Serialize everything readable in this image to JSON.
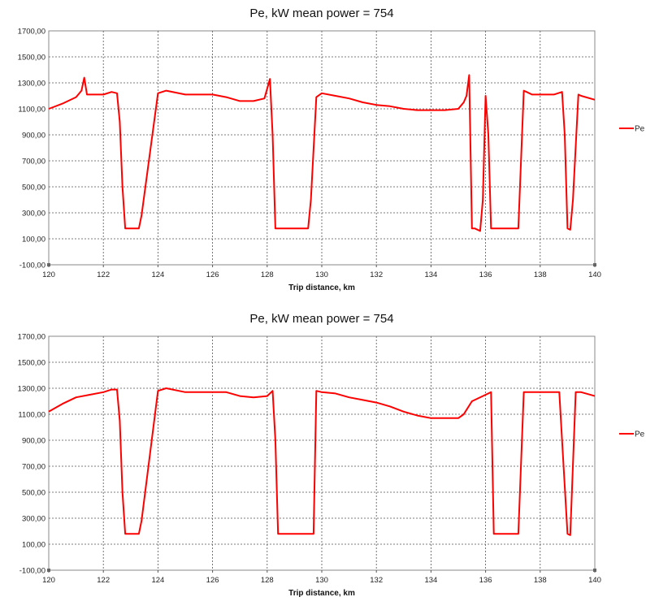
{
  "chart_data": [
    {
      "type": "line",
      "title": "Pe, kW mean power = 754",
      "xlabel": "Trip distance, km",
      "ylabel": "",
      "xlim": [
        120,
        140
      ],
      "ylim": [
        -100,
        1700
      ],
      "x_ticks": [
        "120",
        "122",
        "124",
        "126",
        "128",
        "130",
        "132",
        "134",
        "136",
        "138",
        "140"
      ],
      "y_ticks": [
        "-100,00",
        "100,00",
        "300,00",
        "500,00",
        "700,00",
        "900,00",
        "1100,00",
        "1300,00",
        "1500,00",
        "1700,00"
      ],
      "grid": true,
      "legend": "right",
      "series": [
        {
          "name": "Pe",
          "color": "#ff0000",
          "x": [
            120,
            120.5,
            121,
            121.2,
            121.3,
            121.4,
            122,
            122.3,
            122.5,
            122.6,
            122.7,
            122.8,
            123.3,
            123.4,
            124,
            124.3,
            125,
            126,
            126.5,
            127,
            127.5,
            127.9,
            128.1,
            128.2,
            128.3,
            128.5,
            129.5,
            129.6,
            129.8,
            130,
            130.5,
            131,
            131.5,
            132,
            132.5,
            133,
            133.5,
            134,
            134.5,
            135,
            135.2,
            135.3,
            135.4,
            135.5,
            135.6,
            135.8,
            135.9,
            136,
            136.1,
            136.2,
            136.4,
            136.7,
            137.2,
            137.4,
            137.5,
            137.7,
            138,
            138.5,
            138.8,
            138.9,
            139,
            139.1,
            139.2,
            139.4,
            139.5,
            140
          ],
          "y": [
            1100,
            1140,
            1190,
            1240,
            1340,
            1210,
            1210,
            1230,
            1220,
            1000,
            500,
            180,
            180,
            280,
            1220,
            1240,
            1210,
            1210,
            1190,
            1160,
            1160,
            1180,
            1330,
            900,
            180,
            180,
            180,
            400,
            1190,
            1220,
            1200,
            1180,
            1150,
            1130,
            1120,
            1100,
            1090,
            1090,
            1090,
            1100,
            1150,
            1200,
            1360,
            180,
            180,
            160,
            400,
            1200,
            900,
            180,
            180,
            180,
            180,
            1240,
            1230,
            1210,
            1210,
            1210,
            1230,
            900,
            180,
            170,
            400,
            1210,
            1200,
            1170
          ]
        }
      ]
    },
    {
      "type": "line",
      "title": "Pe, kW mean power = 754",
      "xlabel": "Trip distance, km",
      "ylabel": "",
      "xlim": [
        120,
        140
      ],
      "ylim": [
        -100,
        1700
      ],
      "x_ticks": [
        "120",
        "122",
        "124",
        "126",
        "128",
        "130",
        "132",
        "134",
        "136",
        "138",
        "140"
      ],
      "y_ticks": [
        "-100,00",
        "100,00",
        "300,00",
        "500,00",
        "700,00",
        "900,00",
        "1100,00",
        "1300,00",
        "1500,00",
        "1700,00"
      ],
      "grid": true,
      "legend": "right",
      "series": [
        {
          "name": "Pe",
          "color": "#ff0000",
          "x": [
            120,
            120.5,
            121,
            121.5,
            122,
            122.3,
            122.5,
            122.6,
            122.7,
            122.8,
            123.3,
            123.4,
            124,
            124.3,
            125,
            126,
            126.5,
            127,
            127.5,
            128,
            128.2,
            128.3,
            128.4,
            128.5,
            129.7,
            129.8,
            130,
            130.5,
            131,
            131.5,
            132,
            132.5,
            133,
            133.5,
            134,
            134.5,
            135,
            135.2,
            135.5,
            136,
            136.2,
            136.3,
            137.2,
            137.4,
            137.5,
            138,
            138.5,
            138.7,
            138.8,
            139,
            139.1,
            139.3,
            139.5,
            140
          ],
          "y": [
            1120,
            1180,
            1230,
            1250,
            1270,
            1290,
            1290,
            1050,
            500,
            180,
            180,
            280,
            1280,
            1300,
            1270,
            1270,
            1270,
            1240,
            1230,
            1240,
            1280,
            900,
            180,
            180,
            180,
            1280,
            1270,
            1260,
            1230,
            1210,
            1190,
            1160,
            1120,
            1090,
            1070,
            1070,
            1070,
            1100,
            1200,
            1250,
            1270,
            180,
            180,
            1270,
            1270,
            1270,
            1270,
            1270,
            900,
            180,
            170,
            1270,
            1270,
            1240
          ]
        }
      ]
    }
  ]
}
